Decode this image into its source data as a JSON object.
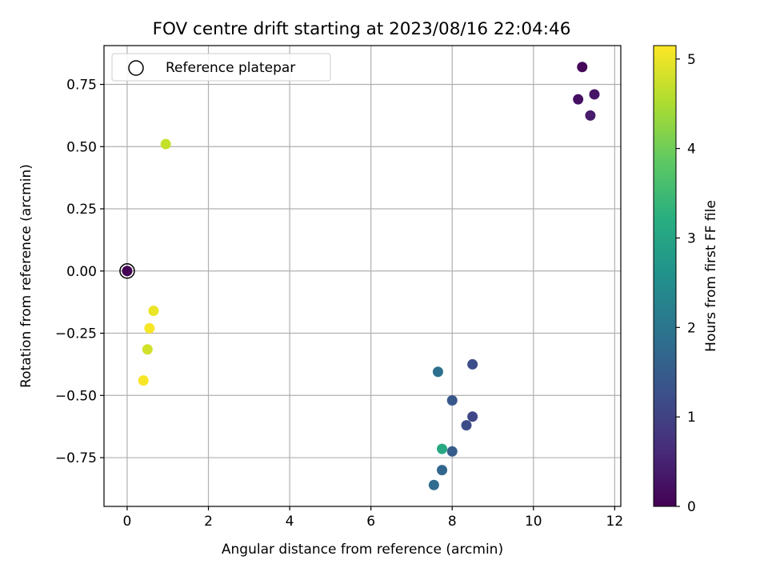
{
  "chart_data": {
    "type": "scatter",
    "title": "FOV centre drift starting at 2023/08/16 22:04:46",
    "xlabel": "Angular distance from reference (arcmin)",
    "ylabel": "Rotation from reference (arcmin)",
    "xlim": [
      -0.57,
      12.15
    ],
    "ylim": [
      -0.946,
      0.906
    ],
    "xticks": [
      0,
      2,
      4,
      6,
      8,
      10,
      12
    ],
    "xtick_labels": [
      "0",
      "2",
      "4",
      "6",
      "8",
      "10",
      "12"
    ],
    "yticks": [
      0.75,
      0.5,
      0.25,
      0.0,
      -0.25,
      -0.5,
      -0.75
    ],
    "ytick_labels": [
      "0.75",
      "0.50",
      "0.25",
      "0.00",
      "−0.25",
      "−0.50",
      "−0.75"
    ],
    "grid": true,
    "legend": {
      "position": "top-left",
      "entries": [
        "Reference platepar"
      ]
    },
    "colorbar": {
      "label": "Hours from first FF file",
      "colormap": "viridis",
      "range": [
        0,
        5.15
      ],
      "ticks": [
        0,
        1,
        2,
        3,
        4,
        5
      ],
      "tick_labels": [
        "0",
        "1",
        "2",
        "3",
        "4",
        "5"
      ]
    },
    "reference_point": {
      "x": 0.0,
      "y": 0.0
    },
    "points": [
      {
        "x": 0.0,
        "y": 0.0,
        "hours": 0.0
      },
      {
        "x": 11.2,
        "y": 0.82,
        "hours": 0.1
      },
      {
        "x": 11.1,
        "y": 0.69,
        "hours": 0.2
      },
      {
        "x": 11.5,
        "y": 0.71,
        "hours": 0.3
      },
      {
        "x": 11.4,
        "y": 0.625,
        "hours": 0.4
      },
      {
        "x": 8.5,
        "y": -0.375,
        "hours": 1.2
      },
      {
        "x": 8.5,
        "y": -0.585,
        "hours": 1.1
      },
      {
        "x": 8.35,
        "y": -0.62,
        "hours": 1.2
      },
      {
        "x": 8.0,
        "y": -0.52,
        "hours": 1.4
      },
      {
        "x": 8.0,
        "y": -0.725,
        "hours": 1.5
      },
      {
        "x": 7.65,
        "y": -0.405,
        "hours": 1.9
      },
      {
        "x": 7.75,
        "y": -0.8,
        "hours": 1.7
      },
      {
        "x": 7.55,
        "y": -0.86,
        "hours": 1.8
      },
      {
        "x": 7.75,
        "y": -0.715,
        "hours": 3.1
      },
      {
        "x": 0.95,
        "y": 0.51,
        "hours": 4.7
      },
      {
        "x": 0.5,
        "y": -0.315,
        "hours": 4.8
      },
      {
        "x": 0.65,
        "y": -0.16,
        "hours": 5.0
      },
      {
        "x": 0.55,
        "y": -0.23,
        "hours": 5.1
      },
      {
        "x": 0.4,
        "y": -0.44,
        "hours": 5.1
      }
    ]
  }
}
